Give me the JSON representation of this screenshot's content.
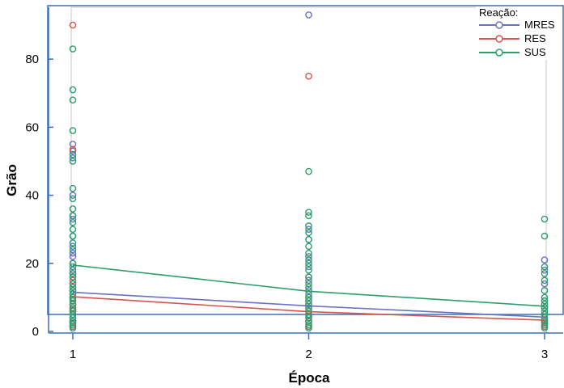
{
  "chart_data": {
    "type": "scatter",
    "title": "",
    "xlabel": "Época",
    "ylabel": "Grão",
    "xlim": [
      1,
      3
    ],
    "ylim": [
      0,
      95
    ],
    "xticks": [
      1,
      2,
      3
    ],
    "yticks": [
      0,
      20,
      40,
      60,
      80
    ],
    "grid": false,
    "legend": {
      "title": "Reação:",
      "position": "top-right",
      "entries": [
        "MRES",
        "RES",
        "SUS"
      ]
    },
    "series": [
      {
        "name": "MRES",
        "color": "#6b72c4",
        "points": [
          {
            "x": 1,
            "y": 1.5
          },
          {
            "x": 1,
            "y": 2.5
          },
          {
            "x": 1,
            "y": 4
          },
          {
            "x": 1,
            "y": 6
          },
          {
            "x": 1,
            "y": 8
          },
          {
            "x": 1,
            "y": 10
          },
          {
            "x": 1,
            "y": 12
          },
          {
            "x": 1,
            "y": 14
          },
          {
            "x": 1,
            "y": 16
          },
          {
            "x": 1,
            "y": 18
          },
          {
            "x": 1,
            "y": 20
          },
          {
            "x": 1,
            "y": 22
          },
          {
            "x": 1,
            "y": 23
          },
          {
            "x": 1,
            "y": 25
          },
          {
            "x": 1,
            "y": 28
          },
          {
            "x": 1,
            "y": 33
          },
          {
            "x": 1,
            "y": 34
          },
          {
            "x": 1,
            "y": 40
          },
          {
            "x": 1,
            "y": 51
          },
          {
            "x": 1,
            "y": 53
          },
          {
            "x": 1,
            "y": 55
          },
          {
            "x": 2,
            "y": 1.5
          },
          {
            "x": 2,
            "y": 3
          },
          {
            "x": 2,
            "y": 5
          },
          {
            "x": 2,
            "y": 7
          },
          {
            "x": 2,
            "y": 9
          },
          {
            "x": 2,
            "y": 12
          },
          {
            "x": 2,
            "y": 15
          },
          {
            "x": 2,
            "y": 19
          },
          {
            "x": 2,
            "y": 22
          },
          {
            "x": 2,
            "y": 27
          },
          {
            "x": 2,
            "y": 30
          },
          {
            "x": 2,
            "y": 93
          },
          {
            "x": 3,
            "y": 1.5
          },
          {
            "x": 3,
            "y": 3
          },
          {
            "x": 3,
            "y": 5
          },
          {
            "x": 3,
            "y": 7
          },
          {
            "x": 3,
            "y": 9
          },
          {
            "x": 3,
            "y": 14
          },
          {
            "x": 3,
            "y": 18
          },
          {
            "x": 3,
            "y": 21
          }
        ],
        "trend": [
          {
            "x": 1,
            "y": 11.5
          },
          {
            "x": 2,
            "y": 7.5
          },
          {
            "x": 3,
            "y": 4.2
          }
        ]
      },
      {
        "name": "RES",
        "color": "#d9534f",
        "points": [
          {
            "x": 1,
            "y": 1.5
          },
          {
            "x": 1,
            "y": 3
          },
          {
            "x": 1,
            "y": 5
          },
          {
            "x": 1,
            "y": 6.5
          },
          {
            "x": 1,
            "y": 8
          },
          {
            "x": 1,
            "y": 9.5
          },
          {
            "x": 1,
            "y": 11
          },
          {
            "x": 1,
            "y": 13
          },
          {
            "x": 1,
            "y": 15
          },
          {
            "x": 1,
            "y": 17
          },
          {
            "x": 1,
            "y": 53.5
          },
          {
            "x": 1,
            "y": 90
          },
          {
            "x": 2,
            "y": 1.5
          },
          {
            "x": 2,
            "y": 3
          },
          {
            "x": 2,
            "y": 4.5
          },
          {
            "x": 2,
            "y": 6
          },
          {
            "x": 2,
            "y": 8
          },
          {
            "x": 2,
            "y": 10
          },
          {
            "x": 2,
            "y": 16
          },
          {
            "x": 2,
            "y": 75
          },
          {
            "x": 3,
            "y": 1.5
          },
          {
            "x": 3,
            "y": 2.5
          },
          {
            "x": 3,
            "y": 3.5
          },
          {
            "x": 3,
            "y": 5
          },
          {
            "x": 3,
            "y": 7
          }
        ],
        "trend": [
          {
            "x": 1,
            "y": 10.2
          },
          {
            "x": 2,
            "y": 5.8
          },
          {
            "x": 3,
            "y": 3.3
          }
        ]
      },
      {
        "name": "SUS",
        "color": "#2e9e6e",
        "points": [
          {
            "x": 1,
            "y": 1
          },
          {
            "x": 1,
            "y": 2
          },
          {
            "x": 1,
            "y": 3
          },
          {
            "x": 1,
            "y": 4
          },
          {
            "x": 1,
            "y": 5
          },
          {
            "x": 1,
            "y": 6
          },
          {
            "x": 1,
            "y": 7
          },
          {
            "x": 1,
            "y": 8
          },
          {
            "x": 1,
            "y": 9
          },
          {
            "x": 1,
            "y": 10
          },
          {
            "x": 1,
            "y": 11
          },
          {
            "x": 1,
            "y": 12
          },
          {
            "x": 1,
            "y": 13
          },
          {
            "x": 1,
            "y": 14
          },
          {
            "x": 1,
            "y": 16
          },
          {
            "x": 1,
            "y": 17
          },
          {
            "x": 1,
            "y": 19
          },
          {
            "x": 1,
            "y": 20
          },
          {
            "x": 1,
            "y": 24
          },
          {
            "x": 1,
            "y": 26
          },
          {
            "x": 1,
            "y": 28
          },
          {
            "x": 1,
            "y": 30
          },
          {
            "x": 1,
            "y": 32
          },
          {
            "x": 1,
            "y": 34
          },
          {
            "x": 1,
            "y": 36
          },
          {
            "x": 1,
            "y": 39
          },
          {
            "x": 1,
            "y": 42
          },
          {
            "x": 1,
            "y": 50
          },
          {
            "x": 1,
            "y": 52
          },
          {
            "x": 1,
            "y": 59
          },
          {
            "x": 1,
            "y": 68
          },
          {
            "x": 1,
            "y": 71
          },
          {
            "x": 1,
            "y": 83
          },
          {
            "x": 2,
            "y": 1
          },
          {
            "x": 2,
            "y": 2
          },
          {
            "x": 2,
            "y": 3
          },
          {
            "x": 2,
            "y": 4
          },
          {
            "x": 2,
            "y": 5
          },
          {
            "x": 2,
            "y": 6
          },
          {
            "x": 2,
            "y": 7
          },
          {
            "x": 2,
            "y": 8
          },
          {
            "x": 2,
            "y": 9
          },
          {
            "x": 2,
            "y": 10
          },
          {
            "x": 2,
            "y": 11
          },
          {
            "x": 2,
            "y": 13
          },
          {
            "x": 2,
            "y": 14
          },
          {
            "x": 2,
            "y": 16
          },
          {
            "x": 2,
            "y": 18
          },
          {
            "x": 2,
            "y": 20
          },
          {
            "x": 2,
            "y": 21
          },
          {
            "x": 2,
            "y": 23
          },
          {
            "x": 2,
            "y": 25
          },
          {
            "x": 2,
            "y": 27
          },
          {
            "x": 2,
            "y": 29
          },
          {
            "x": 2,
            "y": 31
          },
          {
            "x": 2,
            "y": 34
          },
          {
            "x": 2,
            "y": 35
          },
          {
            "x": 2,
            "y": 47
          },
          {
            "x": 3,
            "y": 1
          },
          {
            "x": 3,
            "y": 2
          },
          {
            "x": 3,
            "y": 3
          },
          {
            "x": 3,
            "y": 4
          },
          {
            "x": 3,
            "y": 5
          },
          {
            "x": 3,
            "y": 6
          },
          {
            "x": 3,
            "y": 7
          },
          {
            "x": 3,
            "y": 8
          },
          {
            "x": 3,
            "y": 9
          },
          {
            "x": 3,
            "y": 10
          },
          {
            "x": 3,
            "y": 12
          },
          {
            "x": 3,
            "y": 15
          },
          {
            "x": 3,
            "y": 17
          },
          {
            "x": 3,
            "y": 19
          },
          {
            "x": 3,
            "y": 28
          },
          {
            "x": 3,
            "y": 33
          }
        ],
        "trend": [
          {
            "x": 1,
            "y": 19.5
          },
          {
            "x": 2,
            "y": 11.8
          },
          {
            "x": 3,
            "y": 7.4
          }
        ]
      }
    ]
  }
}
